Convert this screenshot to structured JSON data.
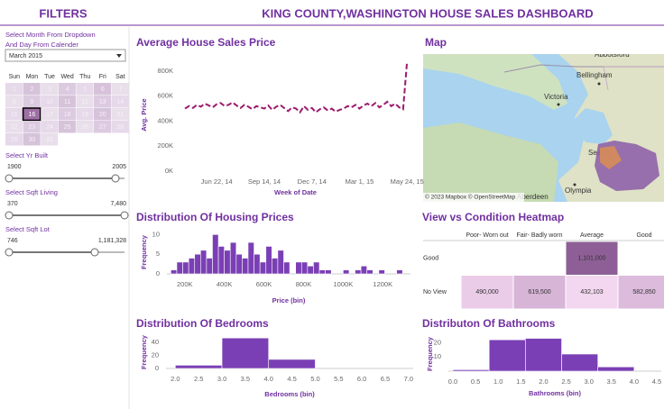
{
  "header": {
    "filters_title": "FILTERS",
    "title": "KING COUNTY,WASHINGTON HOUSE SALES DASHBOARD"
  },
  "filters": {
    "month_prompt": [
      "Select Month From Dropdown",
      "And Day From Calender"
    ],
    "month": "March 2015",
    "weekdays": [
      "Sun",
      "Mon",
      "Tue",
      "Wed",
      "Thu",
      "Fri",
      "Sat"
    ],
    "days": [
      1,
      2,
      3,
      4,
      5,
      6,
      7,
      8,
      9,
      10,
      11,
      12,
      13,
      14,
      15,
      16,
      17,
      18,
      19,
      20,
      21,
      22,
      23,
      24,
      25,
      26,
      27,
      28,
      29,
      30,
      31
    ],
    "selected_day": 16,
    "sliders": [
      {
        "label": "Select Yr Built",
        "min": 1900,
        "max": 2005
      },
      {
        "label": "Select Sqft Living",
        "min": 370,
        "max": "7,480"
      },
      {
        "label": "Select Sqft Lot",
        "min": 746,
        "max": "1,181,328"
      }
    ]
  },
  "map": {
    "title": "Map",
    "attribution": "© 2023 Mapbox © OpenStreetMap",
    "labels": [
      "Abbotsford",
      "Bellingham",
      "Victoria",
      "Seattle",
      "Olympia",
      "Aberdeen"
    ]
  },
  "chart_data": [
    {
      "type": "line",
      "title": "Average House Sales Price",
      "y_label": "Avg. Price",
      "x_label": "Week of Date",
      "color": "#9c1a6e",
      "dashed": true,
      "x": [
        "2014-04-27",
        "2014-05-04",
        "2014-05-11",
        "2014-05-18",
        "2014-05-25",
        "2014-06-01",
        "2014-06-08",
        "2014-06-15",
        "2014-06-22",
        "2014-06-29",
        "2014-07-06",
        "2014-07-13",
        "2014-07-20",
        "2014-07-27",
        "2014-08-03",
        "2014-08-10",
        "2014-08-17",
        "2014-08-24",
        "2014-08-31",
        "2014-09-07",
        "2014-09-14",
        "2014-09-21",
        "2014-09-28",
        "2014-10-05",
        "2014-10-12",
        "2014-10-19",
        "2014-10-26",
        "2014-11-02",
        "2014-11-09",
        "2014-11-16",
        "2014-11-23",
        "2014-11-30",
        "2014-12-07",
        "2014-12-14",
        "2014-12-21",
        "2014-12-28",
        "2015-01-04",
        "2015-01-11",
        "2015-01-18",
        "2015-01-25",
        "2015-02-01",
        "2015-02-08",
        "2015-02-15",
        "2015-02-22",
        "2015-03-01",
        "2015-03-08",
        "2015-03-15",
        "2015-03-22",
        "2015-03-29",
        "2015-04-05",
        "2015-04-12",
        "2015-04-19",
        "2015-04-26",
        "2015-05-03",
        "2015-05-10",
        "2015-05-17",
        "2015-05-24"
      ],
      "values": [
        500000,
        520000,
        505000,
        530000,
        515000,
        540000,
        525000,
        510000,
        535000,
        545000,
        520000,
        530000,
        550000,
        525000,
        505000,
        530000,
        515000,
        495000,
        520000,
        510000,
        500000,
        525000,
        490000,
        515000,
        530000,
        505000,
        480000,
        510000,
        500000,
        470000,
        520000,
        490000,
        505000,
        470000,
        495000,
        510000,
        485000,
        500000,
        475000,
        490000,
        500000,
        520000,
        510000,
        530000,
        500000,
        525000,
        540000,
        520000,
        545000,
        510000,
        530000,
        555000,
        520000,
        540000,
        510000,
        495000,
        880000
      ],
      "xlim": [
        "2014-04-19",
        "2015-05-30"
      ],
      "xticks": [
        {
          "value": "2014-06-22",
          "label": "Jun 22, 14"
        },
        {
          "value": "2014-09-14",
          "label": "Sep 14, 14"
        },
        {
          "value": "2014-12-07",
          "label": "Dec 7, 14"
        },
        {
          "value": "2015-03-01",
          "label": "Mar 1, 15"
        },
        {
          "value": "2015-05-24",
          "label": "May 24, 15"
        }
      ],
      "ylim": [
        0,
        900000
      ],
      "yticks": [
        {
          "value": 0,
          "label": "0K"
        },
        {
          "value": 200000,
          "label": "200K"
        },
        {
          "value": 400000,
          "label": "400K"
        },
        {
          "value": 600000,
          "label": "600K"
        },
        {
          "value": 800000,
          "label": "800K"
        }
      ]
    },
    {
      "type": "histogram",
      "title": "Distribution Of Housing Prices",
      "y_label": "Frequency",
      "x_label": "Price (bin)",
      "color": "#7b3fb5",
      "bins": [
        130000,
        160000,
        190000,
        220000,
        250000,
        280000,
        310000,
        340000,
        370000,
        400000,
        430000,
        460000,
        490000,
        520000,
        550000,
        580000,
        610000,
        640000,
        670000,
        700000,
        730000,
        760000,
        790000,
        820000,
        850000,
        880000,
        910000,
        940000,
        970000,
        1000000,
        1030000,
        1060000,
        1090000,
        1120000,
        1150000,
        1180000,
        1210000,
        1240000,
        1270000,
        1300000,
        1330000
      ],
      "values": [
        1,
        3,
        3,
        4,
        5,
        6,
        4,
        10,
        7,
        6,
        8,
        5,
        4,
        8,
        5,
        3,
        7,
        4,
        6,
        3,
        0,
        3,
        3,
        2,
        3,
        1,
        1,
        0,
        0,
        1,
        0,
        1,
        2,
        1,
        0,
        1,
        0,
        0,
        1,
        0
      ],
      "xlim": [
        110000,
        1340000
      ],
      "xticks": [
        {
          "value": 200000,
          "label": "200K"
        },
        {
          "value": 400000,
          "label": "400K"
        },
        {
          "value": 600000,
          "label": "600K"
        },
        {
          "value": 800000,
          "label": "800K"
        },
        {
          "value": 1000000,
          "label": "1000K"
        },
        {
          "value": 1200000,
          "label": "1200K"
        }
      ],
      "ylim": [
        0,
        11
      ],
      "yticks": [
        0,
        5,
        10
      ]
    },
    {
      "type": "heatmap",
      "title": "View vs Condition Heatmap",
      "columns": [
        "Poor- Worn out",
        "Fair- Badly worn",
        "Average",
        "Good"
      ],
      "rows": [
        "Good",
        "No View"
      ],
      "values": [
        [
          null,
          null,
          1101000,
          null
        ],
        [
          490000,
          619500,
          432103,
          582850
        ]
      ],
      "value_labels": [
        [
          null,
          null,
          "1,101,000",
          null
        ],
        [
          "490,000",
          "619,500",
          "432,103",
          "582,850"
        ]
      ],
      "color_range": [
        "#f3d6f0",
        "#8e5f96"
      ]
    },
    {
      "type": "histogram",
      "title": "Distribution Of Bedrooms",
      "y_label": "Frequency",
      "x_label": "Bedrooms (bin)",
      "color": "#7b3fb5",
      "bins": [
        2,
        3,
        4,
        5
      ],
      "values": [
        5,
        47,
        14
      ],
      "xlim": [
        1.8,
        7.1
      ],
      "xticks": [
        {
          "value": 2,
          "label": "2.0"
        },
        2.5,
        {
          "value": 3,
          "label": "3.0"
        },
        3.5,
        {
          "value": 4,
          "label": "4.0"
        },
        4.5,
        {
          "value": 5,
          "label": "5.0"
        },
        5.5,
        {
          "value": 6,
          "label": "6.0"
        },
        6.5,
        {
          "value": 7,
          "label": "7.0"
        }
      ],
      "ylim": [
        0,
        50
      ],
      "yticks": [
        0,
        20,
        40
      ]
    },
    {
      "type": "histogram",
      "title": "Distributon Of Bathrooms",
      "y_label": "Frequency",
      "x_label": "Bathrooms (bin)",
      "color": "#7b3fb5",
      "bins": [
        0,
        0.8,
        1.6,
        2.4,
        3.2,
        4.0
      ],
      "values": [
        1,
        22,
        23,
        12,
        3
      ],
      "xlim": [
        -0.1,
        4.6
      ],
      "xticks": [
        {
          "value": 0,
          "label": "0.0"
        },
        0.5,
        {
          "value": 1,
          "label": "1.0"
        },
        1.5,
        {
          "value": 2,
          "label": "2.0"
        },
        2.5,
        {
          "value": 3,
          "label": "3.0"
        },
        3.5,
        {
          "value": 4,
          "label": "4.0"
        },
        4.5
      ],
      "ylim": [
        0,
        24
      ],
      "yticks": [
        10,
        20
      ]
    }
  ]
}
